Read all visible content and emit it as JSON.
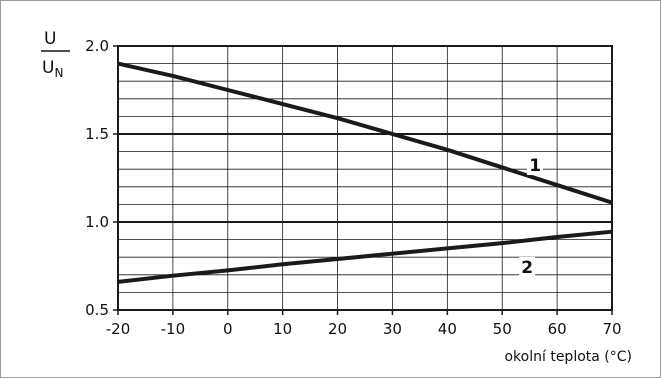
{
  "chart_data": {
    "type": "line",
    "title": "",
    "ylabel": {
      "numerator": "U",
      "denominator": "U",
      "denominator_subscript": "N"
    },
    "xlabel": "okolní teplota (°C)",
    "xlim": [
      -20,
      70
    ],
    "ylim": [
      0.5,
      2.0
    ],
    "x_ticks": [
      "-20",
      "-10",
      "0",
      "10",
      "20",
      "30",
      "40",
      "50",
      "60",
      "70"
    ],
    "y_ticks": [
      "0.5",
      "1.0",
      "1.5",
      "2.0"
    ],
    "grid": true,
    "series": [
      {
        "name": "1",
        "x": [
          -20,
          -10,
          0,
          10,
          20,
          30,
          40,
          50,
          60,
          70
        ],
        "y": [
          1.9,
          1.83,
          1.75,
          1.67,
          1.59,
          1.5,
          1.41,
          1.31,
          1.21,
          1.11
        ]
      },
      {
        "name": "2",
        "x": [
          -20,
          -10,
          0,
          10,
          20,
          30,
          40,
          50,
          60,
          70
        ],
        "y": [
          0.66,
          0.695,
          0.725,
          0.76,
          0.79,
          0.82,
          0.85,
          0.88,
          0.915,
          0.945
        ]
      }
    ],
    "series_label_positions": [
      "near-right",
      "near-right"
    ],
    "colors": {
      "line": "#1a1a1a",
      "grid": "#1a1a1a",
      "frame": "#9a9a9a"
    }
  }
}
